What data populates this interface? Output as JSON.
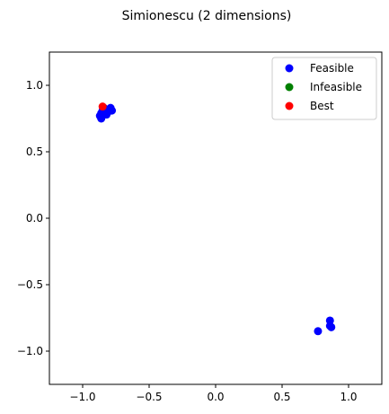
{
  "chart_data": {
    "type": "scatter",
    "title": "Simionescu (2 dimensions)",
    "xlabel": "",
    "ylabel": "",
    "xlim": [
      -1.25,
      1.25
    ],
    "ylim": [
      -1.25,
      1.25
    ],
    "grid": false,
    "legend_position": "top-right",
    "x_ticks": [
      -1.0,
      -0.5,
      0.0,
      0.5,
      1.0
    ],
    "x_tick_labels": [
      "−1.0",
      "−0.5",
      "0.0",
      "0.5",
      "1.0"
    ],
    "y_ticks": [
      -1.0,
      -0.5,
      0.0,
      0.5,
      1.0
    ],
    "y_tick_labels": [
      "−1.0",
      "−0.5",
      "0.0",
      "0.5",
      "1.0"
    ],
    "series": [
      {
        "name": "Feasible",
        "color": "#0000ff",
        "points": [
          [
            -0.87,
            0.77
          ],
          [
            -0.86,
            0.75
          ],
          [
            -0.86,
            0.79
          ],
          [
            -0.85,
            0.81
          ],
          [
            -0.84,
            0.83
          ],
          [
            -0.83,
            0.8
          ],
          [
            -0.82,
            0.78
          ],
          [
            -0.81,
            0.8
          ],
          [
            -0.8,
            0.82
          ],
          [
            -0.79,
            0.83
          ],
          [
            -0.78,
            0.81
          ],
          [
            0.77,
            -0.85
          ],
          [
            0.86,
            -0.77
          ],
          [
            0.86,
            -0.81
          ],
          [
            0.87,
            -0.82
          ]
        ]
      },
      {
        "name": "Infeasible",
        "color": "#008000",
        "points": []
      },
      {
        "name": "Best",
        "color": "#ff0000",
        "points": [
          [
            -0.85,
            0.84
          ]
        ]
      }
    ]
  }
}
